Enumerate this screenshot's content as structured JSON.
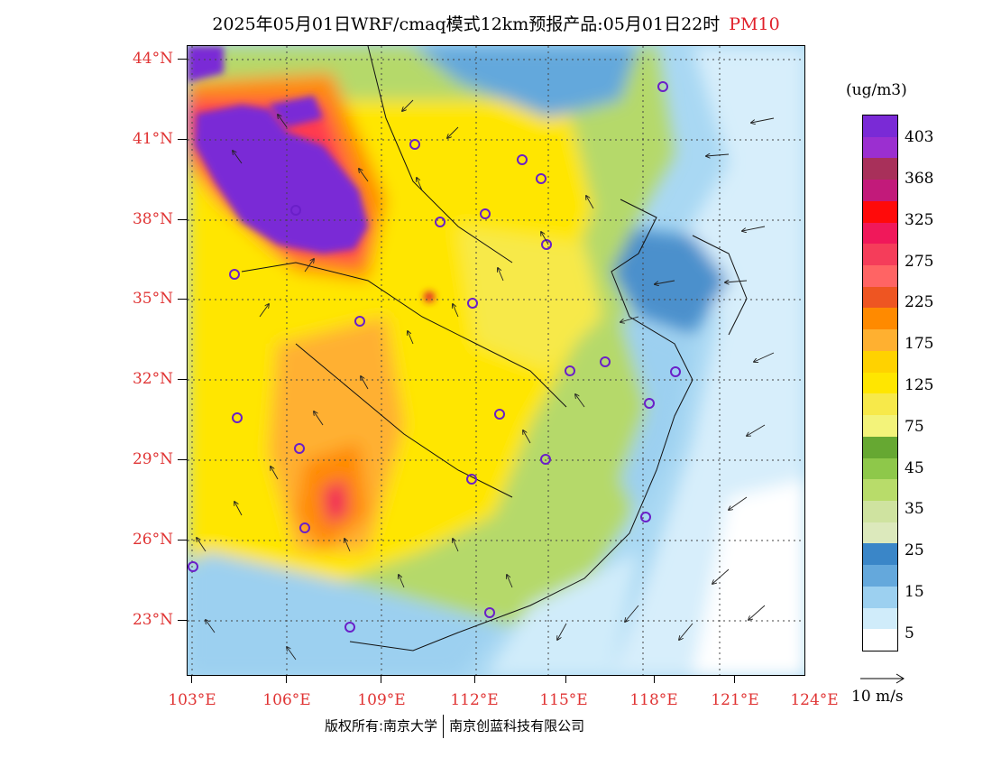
{
  "title": {
    "main": "2025年05月01日WRF/cmaq模式12km预报产品:05月01日22时",
    "pollutant": "PM10"
  },
  "map": {
    "lat_labels": [
      "44°N",
      "41°N",
      "38°N",
      "35°N",
      "32°N",
      "29°N",
      "26°N",
      "23°N"
    ],
    "lon_labels": [
      "103°E",
      "106°E",
      "109°E",
      "112°E",
      "115°E",
      "118°E",
      "121°E",
      "124°E"
    ],
    "lat_range": [
      21,
      44.5
    ],
    "lon_range": [
      103,
      124
    ]
  },
  "colorbar": {
    "unit": "(ug/m3)",
    "labels": [
      "403",
      "368",
      "325",
      "275",
      "225",
      "175",
      "125",
      "75",
      "45",
      "35",
      "25",
      "15",
      "5"
    ],
    "colors": [
      "#7a2ad6",
      "#9b2fd0",
      "#a8305a",
      "#c21a7a",
      "#ff0a0a",
      "#f0185a",
      "#f53d5a",
      "#ff6464",
      "#ee5522",
      "#ff8a00",
      "#ffb030",
      "#ffd200",
      "#ffe600",
      "#f7e94a",
      "#f3f37a",
      "#66a832",
      "#8ec84a",
      "#b8dc6a",
      "#cfe3a0",
      "#dce9bc",
      "#3a86c8",
      "#64a8dc",
      "#9cd0f0",
      "#d0ecfa",
      "#ffffff"
    ]
  },
  "wind_reference": {
    "label": "10 m/s"
  },
  "footer": {
    "left": "版权所有:南京大学",
    "right": "南京创蓝科技有限公司"
  }
}
